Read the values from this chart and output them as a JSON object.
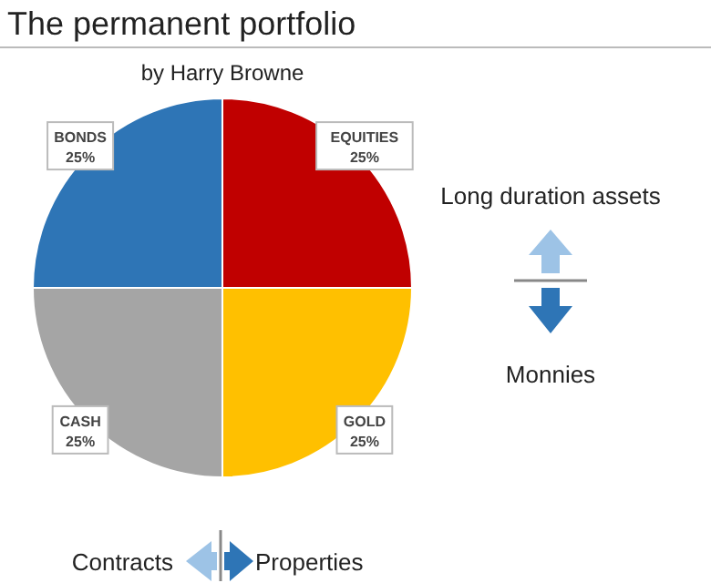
{
  "chart_data": {
    "type": "pie",
    "title": "The permanent portfolio",
    "subtitle": "by Harry Browne",
    "categories": [
      "EQUITIES",
      "GOLD",
      "CASH",
      "BONDS"
    ],
    "values": [
      25,
      25,
      25,
      25
    ],
    "colors": [
      "#c00000",
      "#ffc000",
      "#a5a5a5",
      "#2e75b6"
    ],
    "value_labels": [
      "25%",
      "25%",
      "25%",
      "25%"
    ],
    "legend": false,
    "annotations": [
      "Long duration assets",
      "Monnies",
      "Contracts",
      "Properties"
    ]
  }
}
